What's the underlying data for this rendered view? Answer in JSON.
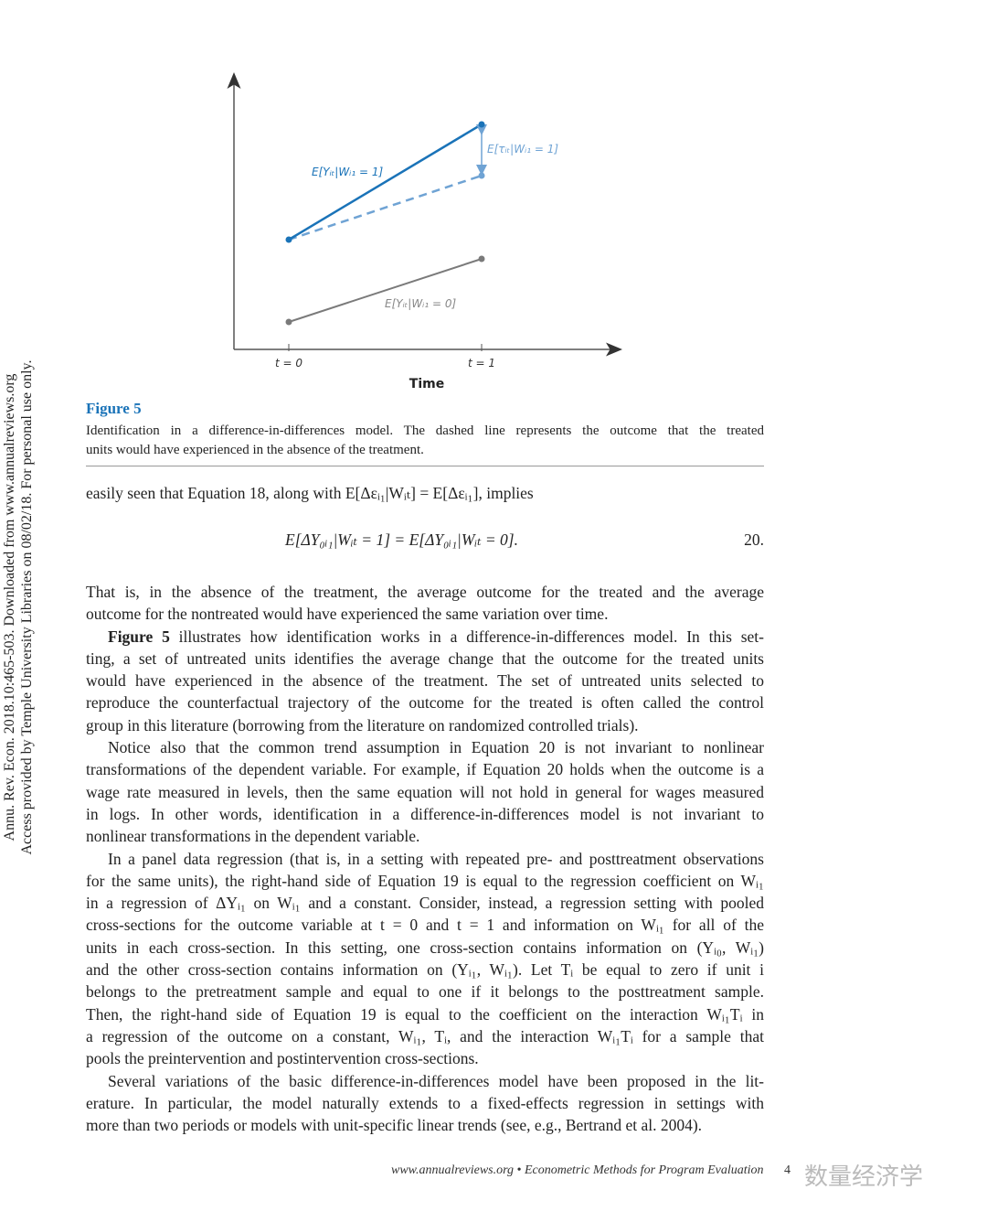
{
  "sidebar": {
    "line1": "Annu. Rev. Econ. 2018.10:465-503. Downloaded from www.annualreviews.org",
    "line2": "Access provided by Temple University Libraries on 08/02/18. For personal use only."
  },
  "figure": {
    "label": "Figure 5",
    "caption_lines": [
      "Identification in a difference-in-differences model. The dashed line represents the outcome that the treated",
      "units would have experienced in the absence of the treatment."
    ],
    "xlabel": "Time",
    "xticks": [
      "t = 0",
      "t = 1"
    ],
    "labels": {
      "treated": "E[Yᵢₜ|Wᵢ₁ = 1]",
      "effect": "E[τᵢₜ|Wᵢ₁ = 1]",
      "control": "E[Yᵢₜ|Wᵢ₁ = 0]"
    },
    "colors": {
      "treated": "#1a73b8",
      "counterfactual": "#6fa3d4",
      "control": "#7a7a7a",
      "axis": "#333333"
    }
  },
  "intro_line": "easily seen that Equation 18, along with E[Δεᵢ₁|Wᵢₜ] = E[Δεᵢ₁], implies",
  "equation": {
    "formula": "E[ΔY₀ᵢ₁|Wᵢₜ = 1] = E[ΔY₀ᵢ₁|Wᵢₜ = 0].",
    "number": "20."
  },
  "paragraphs": [
    {
      "lines": [
        "That is, in the absence of the treatment, the average outcome for the treated and the average",
        "outcome for the nontreated would have experienced the same variation over time."
      ]
    },
    {
      "lead": "Figure 5",
      "lines": [
        " illustrates how identification works in a difference-in-differences model. In this set-",
        "ting, a set of untreated units identifies the average change that the outcome for the treated units",
        "would have experienced in the absence of the treatment. The set of untreated units selected to",
        "reproduce the counterfactual trajectory of the outcome for the treated is often called the control",
        "group in this literature (borrowing from the literature on randomized controlled trials)."
      ]
    },
    {
      "lines": [
        "Notice also that the common trend assumption in Equation 20 is not invariant to nonlinear",
        "transformations of the dependent variable. For example, if Equation 20 holds when the outcome is a",
        "wage rate measured in levels, then the same equation will not hold in general for wages measured",
        "in logs. In other words, identification in a difference-in-differences model is not invariant to",
        "nonlinear transformations in the dependent variable."
      ]
    },
    {
      "lines": [
        "In a panel data regression (that is, in a setting with repeated pre- and posttreatment observations",
        "for the same units), the right-hand side of Equation 19 is equal to the regression coefficient on Wᵢ₁",
        "in a regression of ΔYᵢ₁ on Wᵢ₁ and a constant. Consider, instead, a regression setting with pooled",
        "cross-sections for the outcome variable at t = 0 and t = 1 and information on Wᵢ₁ for all of the",
        "units in each cross-section. In this setting, one cross-section contains information on (Yᵢ₀, Wᵢ₁)",
        "and the other cross-section contains information on (Yᵢ₁, Wᵢ₁). Let Tᵢ be equal to zero if unit i",
        "belongs to the pretreatment sample and equal to one if it belongs to the posttreatment sample.",
        "Then, the right-hand side of Equation 19 is equal to the coefficient on the interaction Wᵢ₁Tᵢ in",
        "a regression of the outcome on a constant, Wᵢ₁, Tᵢ, and the interaction Wᵢ₁Tᵢ for a sample that",
        "pools the preintervention and postintervention cross-sections."
      ]
    },
    {
      "lines": [
        "Several variations of the basic difference-in-differences model have been proposed in the lit-",
        "erature. In particular, the model naturally extends to a fixed-effects regression in settings with",
        "more than two periods or models with unit-specific linear trends (see, e.g., Bertrand et al. 2004)."
      ]
    }
  ],
  "footer": {
    "text": "www.annualreviews.org  •  Econometric Methods for Program Evaluation",
    "page": "4",
    "watermark": "数量经济学"
  }
}
